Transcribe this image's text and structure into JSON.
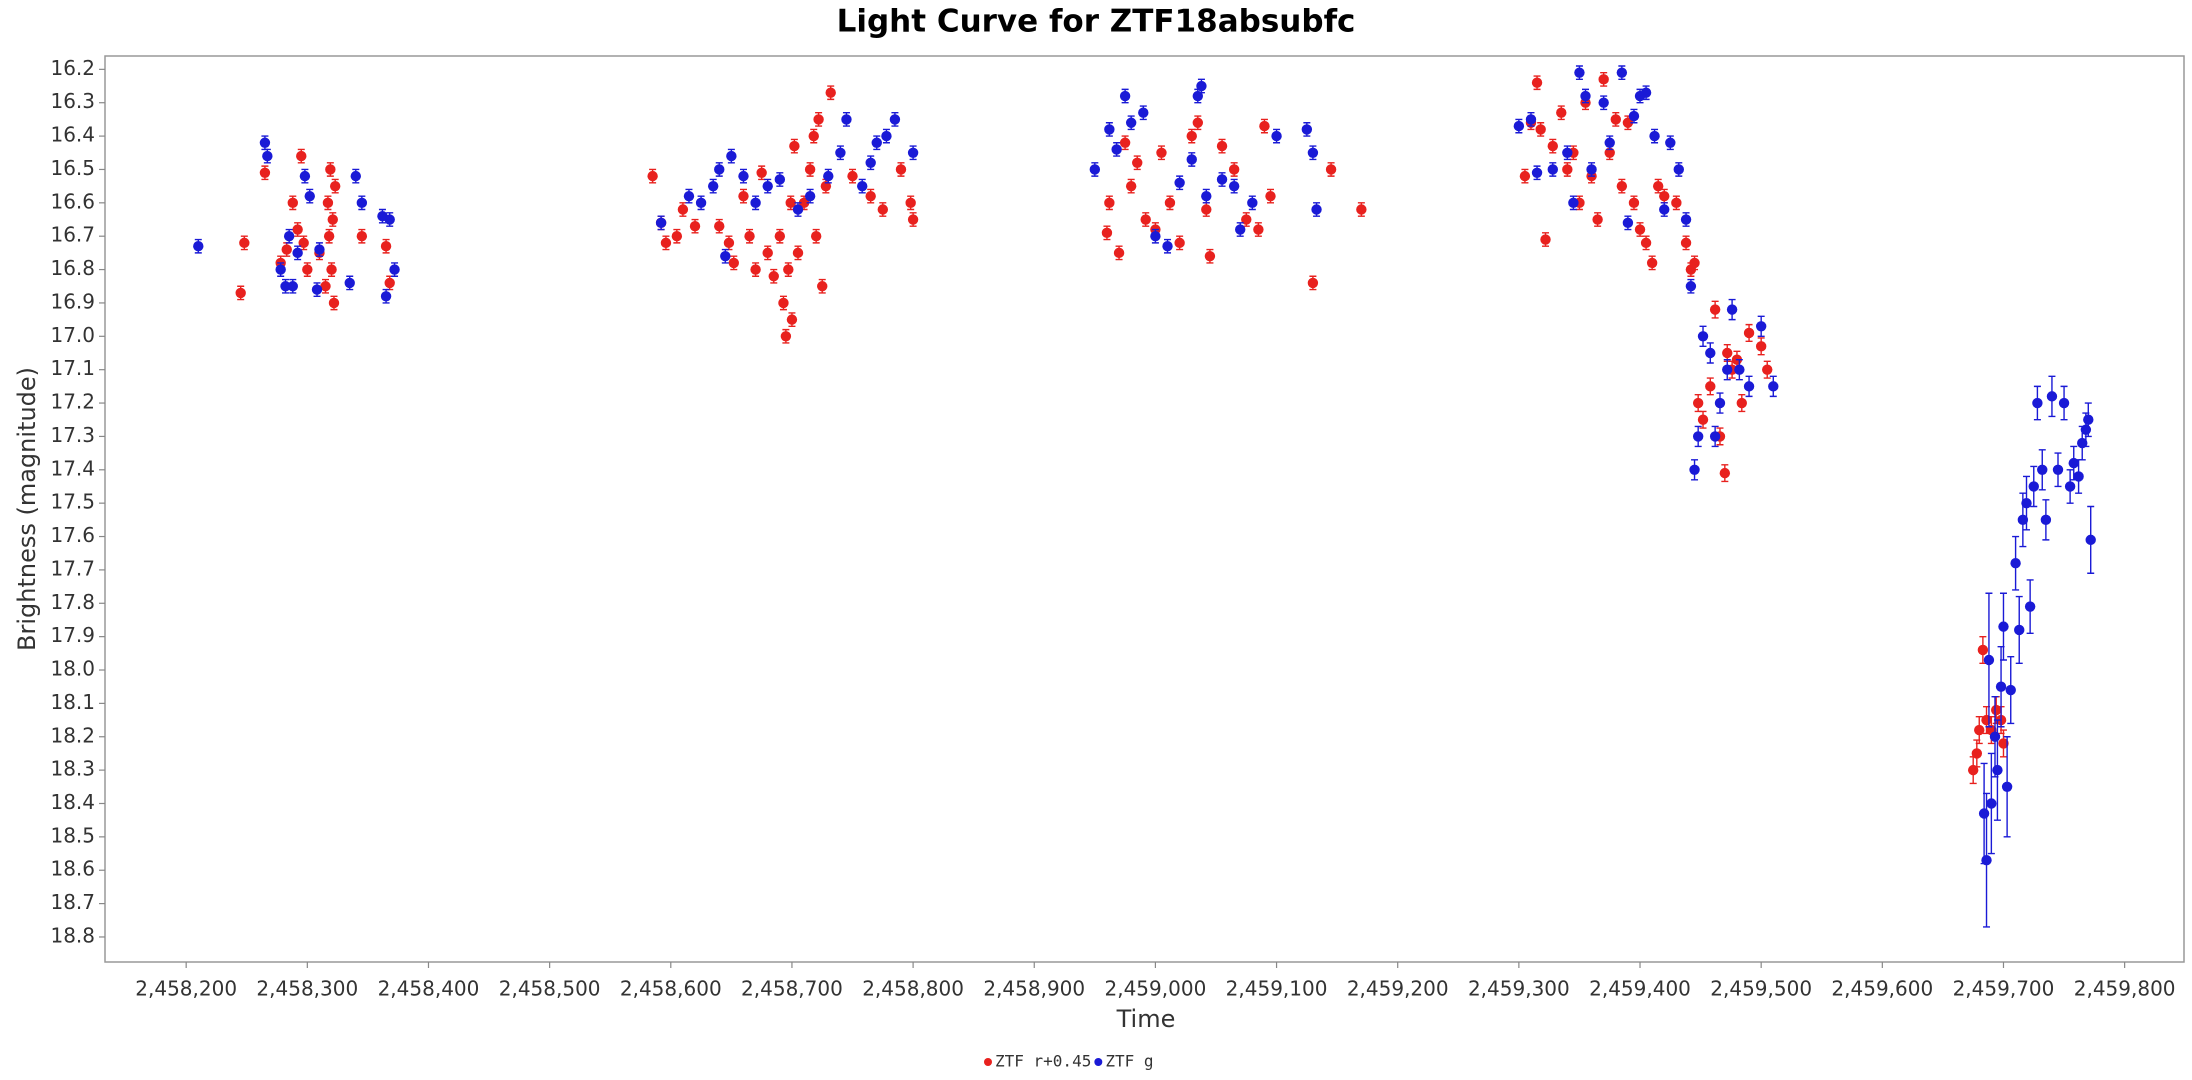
{
  "chart_data": {
    "type": "scatter",
    "title": "Light Curve for ZTF18absubfc",
    "x_label": "Time",
    "y_label": "Brightness (magnitude)",
    "xlim": [
      2458133,
      2459849
    ],
    "ylim": [
      16.16,
      18.875
    ],
    "y_inverted": true,
    "grid": false,
    "legend": "bottom",
    "xticks": [
      {
        "value": 2458200,
        "label": "2,458,200"
      },
      {
        "value": 2458300,
        "label": "2,458,300"
      },
      {
        "value": 2458400,
        "label": "2,458,400"
      },
      {
        "value": 2458500,
        "label": "2,458,500"
      },
      {
        "value": 2458600,
        "label": "2,458,600"
      },
      {
        "value": 2458700,
        "label": "2,458,700"
      },
      {
        "value": 2458800,
        "label": "2,458,800"
      },
      {
        "value": 2458900,
        "label": "2,458,900"
      },
      {
        "value": 2459000,
        "label": "2,459,000"
      },
      {
        "value": 2459100,
        "label": "2,459,100"
      },
      {
        "value": 2459200,
        "label": "2,459,200"
      },
      {
        "value": 2459300,
        "label": "2,459,300"
      },
      {
        "value": 2459400,
        "label": "2,459,400"
      },
      {
        "value": 2459500,
        "label": "2,459,500"
      },
      {
        "value": 2459600,
        "label": "2,459,600"
      },
      {
        "value": 2459700,
        "label": "2,459,700"
      },
      {
        "value": 2459800,
        "label": "2,459,800"
      }
    ],
    "yticks": [
      16.2,
      16.3,
      16.4,
      16.5,
      16.6,
      16.7,
      16.8,
      16.9,
      {
        "value": 17,
        "label": "17.0"
      },
      17.1,
      17.2,
      17.3,
      17.4,
      17.5,
      17.6,
      17.7,
      17.8,
      17.9,
      {
        "value": 18,
        "label": "18.0"
      },
      18.1,
      18.2,
      18.3,
      18.4,
      18.5,
      18.6,
      18.7,
      18.8
    ],
    "series": [
      {
        "name": "ZTF r+0.45",
        "color": "#e8211e",
        "x": [
          2458245,
          2458248,
          2458265,
          2458278,
          2458283,
          2458288,
          2458292,
          2458295,
          2458297,
          2458300,
          2458310,
          2458315,
          2458317,
          2458318,
          2458319,
          2458320,
          2458321,
          2458322,
          2458323,
          2458345,
          2458365,
          2458368,
          2458585,
          2458592,
          2458596,
          2458605,
          2458610,
          2458620,
          2458640,
          2458648,
          2458652,
          2458660,
          2458665,
          2458670,
          2458675,
          2458680,
          2458685,
          2458690,
          2458693,
          2458695,
          2458697,
          2458699,
          2458700,
          2458702,
          2458705,
          2458710,
          2458715,
          2458718,
          2458720,
          2458722,
          2458725,
          2458728,
          2458732,
          2458750,
          2458765,
          2458775,
          2458790,
          2458798,
          2458800,
          2458960,
          2458962,
          2458970,
          2458975,
          2458980,
          2458985,
          2458992,
          2459000,
          2459005,
          2459012,
          2459020,
          2459030,
          2459035,
          2459042,
          2459045,
          2459055,
          2459065,
          2459075,
          2459085,
          2459090,
          2459095,
          2459130,
          2459145,
          2459170,
          2459305,
          2459310,
          2459315,
          2459318,
          2459322,
          2459328,
          2459335,
          2459340,
          2459345,
          2459350,
          2459355,
          2459360,
          2459365,
          2459370,
          2459375,
          2459380,
          2459385,
          2459390,
          2459395,
          2459400,
          2459405,
          2459410,
          2459415,
          2459420,
          2459430,
          2459438,
          2459442,
          2459445,
          2459448,
          2459452,
          2459458,
          2459462,
          2459466,
          2459470,
          2459472,
          2459476,
          2459480,
          2459484,
          2459490,
          2459500,
          2459505,
          2459675,
          2459678,
          2459680,
          2459683,
          2459686,
          2459690,
          2459694,
          2459698,
          2459700
        ],
        "values": [
          16.87,
          16.72,
          16.51,
          16.78,
          16.74,
          16.6,
          16.68,
          16.46,
          16.72,
          16.8,
          16.75,
          16.85,
          16.6,
          16.7,
          16.5,
          16.8,
          16.65,
          16.9,
          16.55,
          16.7,
          16.73,
          16.84,
          16.52,
          16.66,
          16.72,
          16.7,
          16.62,
          16.67,
          16.67,
          16.72,
          16.78,
          16.58,
          16.7,
          16.8,
          16.51,
          16.75,
          16.82,
          16.7,
          16.9,
          17.0,
          16.8,
          16.6,
          16.95,
          16.43,
          16.75,
          16.6,
          16.5,
          16.4,
          16.7,
          16.35,
          16.85,
          16.55,
          16.27,
          16.52,
          16.58,
          16.62,
          16.5,
          16.6,
          16.65,
          16.69,
          16.6,
          16.75,
          16.42,
          16.55,
          16.48,
          16.65,
          16.68,
          16.45,
          16.6,
          16.72,
          16.4,
          16.36,
          16.62,
          16.76,
          16.43,
          16.5,
          16.65,
          16.68,
          16.37,
          16.58,
          16.84,
          16.5,
          16.62,
          16.52,
          16.36,
          16.24,
          16.38,
          16.71,
          16.43,
          16.33,
          16.5,
          16.45,
          16.6,
          16.3,
          16.52,
          16.65,
          16.23,
          16.45,
          16.35,
          16.55,
          16.36,
          16.6,
          16.68,
          16.72,
          16.78,
          16.55,
          16.58,
          16.6,
          16.72,
          16.8,
          16.78,
          17.2,
          17.25,
          17.15,
          16.92,
          17.3,
          17.41,
          17.05,
          17.1,
          17.07,
          17.2,
          16.99,
          17.03,
          17.1,
          18.3,
          18.25,
          18.18,
          17.94,
          18.15,
          18.18,
          18.12,
          18.15,
          18.22
        ],
        "errors": [
          0.02,
          0.02,
          0.02,
          0.02,
          0.02,
          0.02,
          0.02,
          0.02,
          0.02,
          0.02,
          0.02,
          0.02,
          0.02,
          0.02,
          0.02,
          0.02,
          0.02,
          0.02,
          0.02,
          0.02,
          0.02,
          0.02,
          0.02,
          0.02,
          0.02,
          0.02,
          0.02,
          0.02,
          0.02,
          0.02,
          0.02,
          0.02,
          0.02,
          0.02,
          0.02,
          0.02,
          0.02,
          0.02,
          0.02,
          0.02,
          0.02,
          0.02,
          0.02,
          0.02,
          0.02,
          0.02,
          0.02,
          0.02,
          0.02,
          0.02,
          0.02,
          0.02,
          0.02,
          0.02,
          0.02,
          0.02,
          0.02,
          0.02,
          0.02,
          0.02,
          0.02,
          0.02,
          0.02,
          0.02,
          0.02,
          0.02,
          0.02,
          0.02,
          0.02,
          0.02,
          0.02,
          0.02,
          0.02,
          0.02,
          0.02,
          0.02,
          0.02,
          0.02,
          0.02,
          0.02,
          0.02,
          0.02,
          0.02,
          0.02,
          0.02,
          0.02,
          0.02,
          0.02,
          0.02,
          0.02,
          0.02,
          0.02,
          0.02,
          0.02,
          0.02,
          0.02,
          0.02,
          0.02,
          0.02,
          0.02,
          0.02,
          0.02,
          0.02,
          0.02,
          0.02,
          0.02,
          0.02,
          0.02,
          0.02,
          0.02,
          0.02,
          0.025,
          0.025,
          0.025,
          0.025,
          0.025,
          0.025,
          0.025,
          0.025,
          0.025,
          0.025,
          0.025,
          0.025,
          0.025,
          0.04,
          0.04,
          0.04,
          0.04,
          0.04,
          0.04,
          0.04,
          0.04,
          0.04
        ]
      },
      {
        "name": "ZTF g",
        "color": "#1a1ad6",
        "x": [
          2458210,
          2458265,
          2458267,
          2458278,
          2458282,
          2458285,
          2458288,
          2458292,
          2458298,
          2458302,
          2458308,
          2458310,
          2458335,
          2458340,
          2458345,
          2458362,
          2458365,
          2458368,
          2458372,
          2458592,
          2458615,
          2458625,
          2458635,
          2458640,
          2458645,
          2458650,
          2458660,
          2458670,
          2458680,
          2458690,
          2458705,
          2458715,
          2458730,
          2458740,
          2458745,
          2458758,
          2458765,
          2458770,
          2458778,
          2458785,
          2458800,
          2458950,
          2458962,
          2458968,
          2458975,
          2458980,
          2458990,
          2459000,
          2459010,
          2459020,
          2459030,
          2459035,
          2459038,
          2459042,
          2459055,
          2459065,
          2459070,
          2459080,
          2459100,
          2459125,
          2459130,
          2459133,
          2459300,
          2459310,
          2459315,
          2459328,
          2459340,
          2459345,
          2459350,
          2459355,
          2459360,
          2459370,
          2459375,
          2459385,
          2459390,
          2459395,
          2459400,
          2459405,
          2459412,
          2459420,
          2459425,
          2459432,
          2459438,
          2459442,
          2459445,
          2459448,
          2459452,
          2459458,
          2459462,
          2459466,
          2459472,
          2459476,
          2459482,
          2459490,
          2459500,
          2459510,
          2459684,
          2459686,
          2459688,
          2459690,
          2459693,
          2459695,
          2459698,
          2459700,
          2459703,
          2459706,
          2459710,
          2459713,
          2459716,
          2459719,
          2459722,
          2459725,
          2459728,
          2459732,
          2459735,
          2459740,
          2459745,
          2459750,
          2459755,
          2459758,
          2459762,
          2459765,
          2459768,
          2459770,
          2459772
        ],
        "values": [
          16.73,
          16.42,
          16.46,
          16.8,
          16.85,
          16.7,
          16.85,
          16.75,
          16.52,
          16.58,
          16.86,
          16.74,
          16.84,
          16.52,
          16.6,
          16.64,
          16.88,
          16.65,
          16.8,
          16.66,
          16.58,
          16.6,
          16.55,
          16.5,
          16.76,
          16.46,
          16.52,
          16.6,
          16.55,
          16.53,
          16.62,
          16.58,
          16.52,
          16.45,
          16.35,
          16.55,
          16.48,
          16.42,
          16.4,
          16.35,
          16.45,
          16.5,
          16.38,
          16.44,
          16.28,
          16.36,
          16.33,
          16.7,
          16.73,
          16.54,
          16.47,
          16.28,
          16.25,
          16.58,
          16.53,
          16.55,
          16.68,
          16.6,
          16.4,
          16.38,
          16.45,
          16.62,
          16.37,
          16.35,
          16.51,
          16.5,
          16.45,
          16.6,
          16.21,
          16.28,
          16.5,
          16.3,
          16.42,
          16.21,
          16.66,
          16.34,
          16.28,
          16.27,
          16.4,
          16.62,
          16.42,
          16.5,
          16.65,
          16.85,
          17.4,
          17.3,
          17.0,
          17.05,
          17.3,
          17.2,
          17.1,
          16.92,
          17.1,
          17.15,
          16.97,
          17.15,
          18.43,
          18.57,
          17.97,
          18.4,
          18.2,
          18.3,
          18.05,
          17.87,
          18.35,
          18.06,
          17.68,
          17.88,
          17.55,
          17.5,
          17.81,
          17.45,
          17.2,
          17.4,
          17.55,
          17.18,
          17.4,
          17.2,
          17.45,
          17.38,
          17.42,
          17.32,
          17.28,
          17.25,
          17.61
        ],
        "errors": [
          0.02,
          0.02,
          0.02,
          0.02,
          0.02,
          0.02,
          0.02,
          0.02,
          0.02,
          0.02,
          0.02,
          0.02,
          0.02,
          0.02,
          0.02,
          0.02,
          0.02,
          0.02,
          0.02,
          0.02,
          0.02,
          0.02,
          0.02,
          0.02,
          0.02,
          0.02,
          0.02,
          0.02,
          0.02,
          0.02,
          0.02,
          0.02,
          0.02,
          0.02,
          0.02,
          0.02,
          0.02,
          0.02,
          0.02,
          0.02,
          0.02,
          0.02,
          0.02,
          0.02,
          0.02,
          0.02,
          0.02,
          0.02,
          0.02,
          0.02,
          0.02,
          0.02,
          0.02,
          0.02,
          0.02,
          0.02,
          0.02,
          0.02,
          0.02,
          0.02,
          0.02,
          0.02,
          0.02,
          0.02,
          0.02,
          0.02,
          0.02,
          0.02,
          0.02,
          0.02,
          0.02,
          0.02,
          0.02,
          0.02,
          0.02,
          0.02,
          0.02,
          0.02,
          0.02,
          0.02,
          0.02,
          0.02,
          0.02,
          0.02,
          0.03,
          0.03,
          0.03,
          0.03,
          0.03,
          0.03,
          0.03,
          0.03,
          0.03,
          0.03,
          0.03,
          0.03,
          0.15,
          0.2,
          0.2,
          0.15,
          0.12,
          0.15,
          0.12,
          0.1,
          0.15,
          0.1,
          0.08,
          0.1,
          0.08,
          0.08,
          0.08,
          0.06,
          0.05,
          0.06,
          0.06,
          0.06,
          0.05,
          0.05,
          0.05,
          0.05,
          0.05,
          0.05,
          0.05,
          0.05,
          0.1
        ]
      }
    ]
  }
}
